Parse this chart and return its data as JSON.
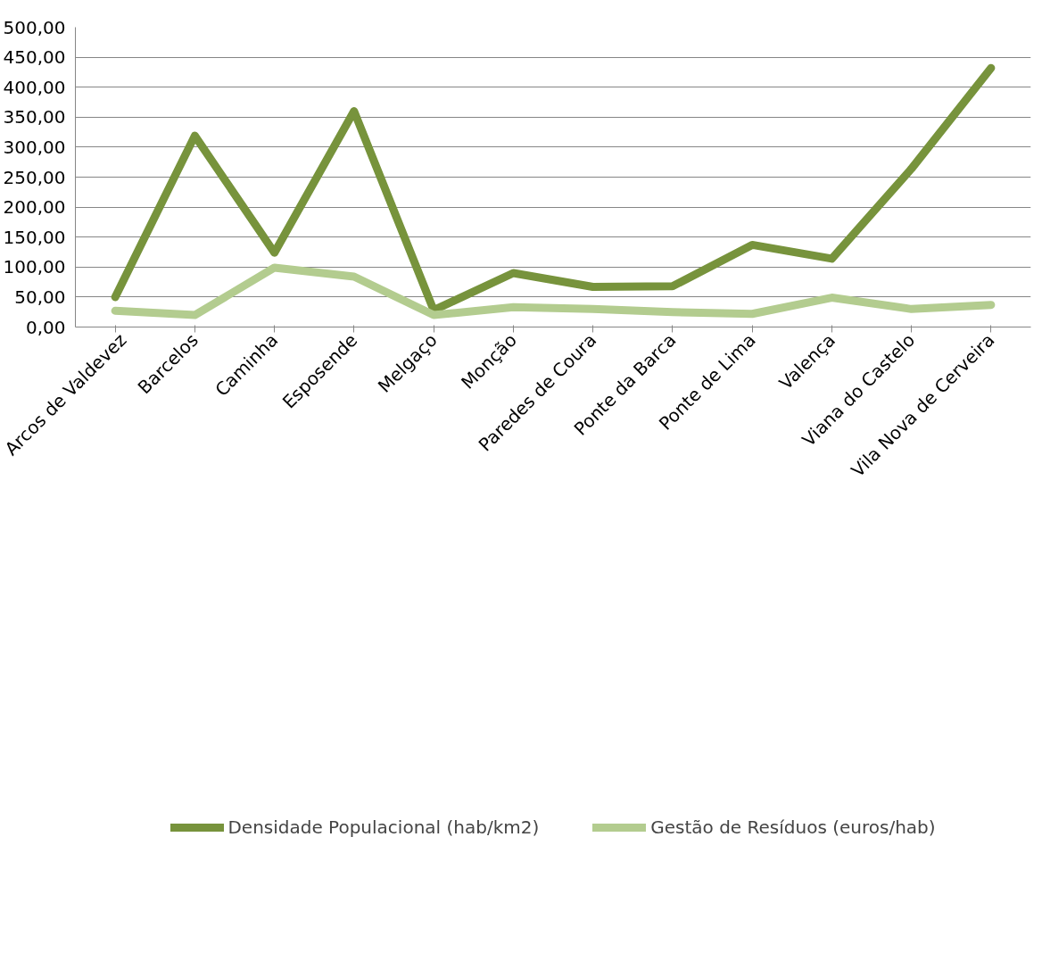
{
  "chart_data": {
    "type": "line",
    "categories": [
      "Arcos de Valdevez",
      "Barcelos",
      "Caminha",
      "Esposende",
      "Melgaço",
      "Monção",
      "Paredes de Coura",
      "Ponte da Barca",
      "Ponte de Lima",
      "Valença",
      "Viana do Castelo",
      "Vila Nova de Cerveira"
    ],
    "series": [
      {
        "name": "Densidade Populacional (hab/km2)",
        "color": "#77933c",
        "values": [
          50,
          319,
          124,
          360,
          28,
          90,
          67,
          68,
          137,
          114,
          264,
          432
        ]
      },
      {
        "name": "Gestão de Resíduos (euros/hab)",
        "color": "#b3cc8f",
        "values": [
          27,
          20,
          99,
          84,
          20,
          33,
          30,
          25,
          22,
          49,
          30,
          37
        ]
      }
    ],
    "ylim": [
      0,
      500
    ],
    "yticks": [
      {
        "value": 0,
        "label": "0,00"
      },
      {
        "value": 50,
        "label": "50,00"
      },
      {
        "value": 100,
        "label": "100,00"
      },
      {
        "value": 150,
        "label": "150,00"
      },
      {
        "value": 200,
        "label": "200,00"
      },
      {
        "value": 250,
        "label": "250,00"
      },
      {
        "value": 300,
        "label": "300,00"
      },
      {
        "value": 350,
        "label": "350,00"
      },
      {
        "value": 400,
        "label": "400,00"
      },
      {
        "value": 450,
        "label": "450,00"
      },
      {
        "value": 500,
        "label": "500,00"
      }
    ],
    "grid": "y",
    "legend": "bottom",
    "marker": "none",
    "line_style": "solid"
  }
}
